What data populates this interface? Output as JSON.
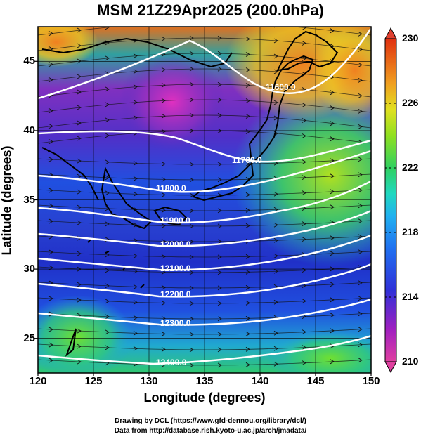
{
  "title": "MSM 21Z29Apr2025 (200.0hPa)",
  "x_axis": {
    "label": "Longitude (degrees)",
    "ticks": [
      "120",
      "125",
      "130",
      "135",
      "140",
      "145",
      "150"
    ],
    "range": [
      120,
      150
    ]
  },
  "y_axis": {
    "label": "Latitude  (degrees)",
    "ticks": [
      "25",
      "30",
      "35",
      "40",
      "45"
    ],
    "range": [
      22.5,
      47.5
    ]
  },
  "colorbar": {
    "ticks": [
      "230",
      "226",
      "222",
      "218",
      "214",
      "210"
    ],
    "range": [
      210,
      230
    ],
    "colors": [
      "#e040a0",
      "#b020c0",
      "#6030d0",
      "#2040e0",
      "#3080f0",
      "#20c8e0",
      "#30d070",
      "#60e030",
      "#c0e020",
      "#f0d020",
      "#f09020",
      "#e04020"
    ]
  },
  "contours": [
    {
      "label": "11600.0",
      "value": 11600
    },
    {
      "label": "11700.0",
      "value": 11700
    },
    {
      "label": "11800.0",
      "value": 11800
    },
    {
      "label": "11900.0",
      "value": 11900
    },
    {
      "label": "12000.0",
      "value": 12000
    },
    {
      "label": "12100.0",
      "value": 12100
    },
    {
      "label": "12200.0",
      "value": 12200
    },
    {
      "label": "12300.0",
      "value": 12300
    },
    {
      "label": "12400.0",
      "value": 12400
    }
  ],
  "credits": {
    "line1": "Drawing by DCL (https://www.gfd-dennou.org/library/dcl/)",
    "line2": "Data from http://database.rish.kyoto-u.ac.jp/arch/jmadata/"
  }
}
